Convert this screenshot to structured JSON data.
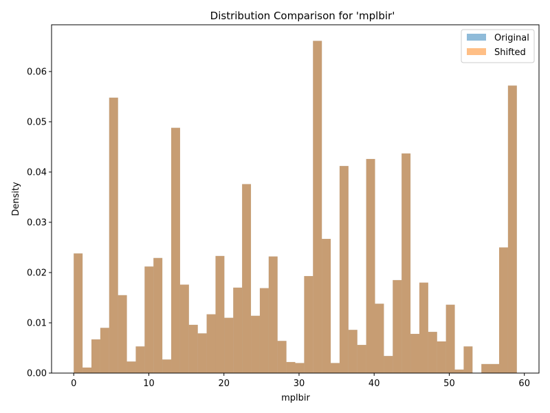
{
  "chart_data": {
    "type": "bar",
    "title": "Distribution Comparison for 'mplbir'",
    "xlabel": "mplbir",
    "ylabel": "Density",
    "xlim": [
      -2.95,
      61.95
    ],
    "ylim": [
      0,
      0.0693
    ],
    "x_ticks": [
      0,
      10,
      20,
      30,
      40,
      50,
      60
    ],
    "y_ticks": [
      0.0,
      0.01,
      0.02,
      0.03,
      0.04,
      0.05,
      0.06
    ],
    "y_tick_labels": [
      "0.00",
      "0.01",
      "0.02",
      "0.03",
      "0.04",
      "0.05",
      "0.06"
    ],
    "legend_position": "top-right",
    "bin_edges": [
      0,
      1.18,
      2.36,
      3.54,
      4.72,
      5.9,
      7.08,
      8.26,
      9.44,
      10.62,
      11.8,
      12.98,
      14.16,
      15.34,
      16.52,
      17.7,
      18.88,
      20.06,
      21.24,
      22.42,
      23.6,
      24.78,
      25.96,
      27.14,
      28.32,
      29.5,
      30.68,
      31.86,
      33.04,
      34.22,
      35.4,
      36.58,
      37.76,
      38.94,
      40.12,
      41.3,
      42.48,
      43.66,
      44.84,
      46.02,
      47.2,
      48.38,
      49.56,
      50.74,
      51.92,
      53.1,
      54.28,
      55.46,
      56.64,
      57.82,
      59
    ],
    "series": [
      {
        "name": "Original",
        "color": "#1f77b4",
        "alpha": 0.5,
        "values": [
          0.0238,
          0.0011,
          0.0067,
          0.009,
          0.0548,
          0.0155,
          0.0023,
          0.0053,
          0.0212,
          0.0229,
          0.0027,
          0.0488,
          0.0176,
          0.0096,
          0.0079,
          0.0117,
          0.0233,
          0.011,
          0.017,
          0.0376,
          0.0114,
          0.0169,
          0.0232,
          0.0064,
          0.0022,
          0.002,
          0.0193,
          0.0661,
          0.0267,
          0.002,
          0.0412,
          0.0086,
          0.0056,
          0.0426,
          0.0138,
          0.0034,
          0.0185,
          0.0437,
          0.0078,
          0.018,
          0.0082,
          0.0063,
          0.0136,
          0.0007,
          0.0053,
          0.0,
          0.0018,
          0.0018,
          0.025,
          0.0572
        ]
      },
      {
        "name": "Shifted",
        "color": "#ff7f0e",
        "alpha": 0.5,
        "values": [
          0.0238,
          0.0011,
          0.0067,
          0.009,
          0.0548,
          0.0155,
          0.0023,
          0.0053,
          0.0212,
          0.0229,
          0.0027,
          0.0488,
          0.0176,
          0.0096,
          0.0079,
          0.0117,
          0.0233,
          0.011,
          0.017,
          0.0376,
          0.0114,
          0.0169,
          0.0232,
          0.0064,
          0.0022,
          0.002,
          0.0193,
          0.0661,
          0.0267,
          0.002,
          0.0412,
          0.0086,
          0.0056,
          0.0426,
          0.0138,
          0.0034,
          0.0185,
          0.0437,
          0.0078,
          0.018,
          0.0082,
          0.0063,
          0.0136,
          0.0007,
          0.0053,
          0.0,
          0.0018,
          0.0018,
          0.025,
          0.0572
        ]
      }
    ]
  }
}
